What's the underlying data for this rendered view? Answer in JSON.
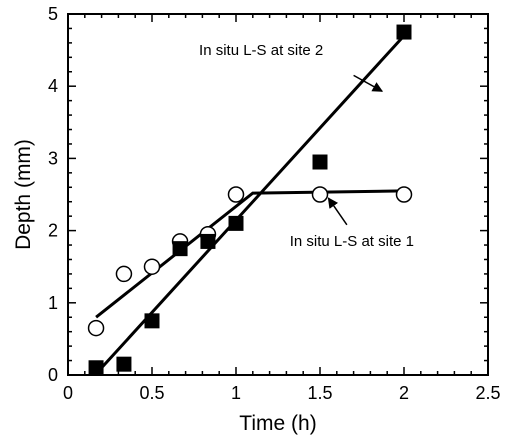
{
  "chart_data": {
    "type": "scatter",
    "xlabel": "Time (h)",
    "ylabel": "Depth (mm)",
    "xlim": [
      0,
      2.5
    ],
    "ylim": [
      0,
      5
    ],
    "xticks": [
      0,
      0.5,
      1,
      1.5,
      2,
      2.5
    ],
    "yticks": [
      0,
      1,
      2,
      3,
      4,
      5
    ],
    "xtick_labels": [
      "0",
      "0.5",
      "1",
      "1.5",
      "2",
      "2.5"
    ],
    "ytick_labels": [
      "0",
      "1",
      "2",
      "3",
      "4",
      "5"
    ],
    "grid": false,
    "series": [
      {
        "marker": "open-circle",
        "x": [
          0.167,
          0.333,
          0.5,
          0.667,
          0.833,
          1.0,
          1.5,
          2.0
        ],
        "y": [
          0.65,
          1.4,
          1.5,
          1.85,
          1.95,
          2.5,
          2.5,
          2.5
        ],
        "fit": [
          [
            0.167,
            0.8
          ],
          [
            1.1,
            2.52
          ],
          [
            2.0,
            2.55
          ]
        ]
      },
      {
        "marker": "filled-square",
        "x": [
          0.167,
          0.333,
          0.5,
          0.667,
          0.833,
          1.0,
          1.5,
          2.0
        ],
        "y": [
          0.1,
          0.15,
          0.75,
          1.75,
          1.85,
          2.1,
          2.95,
          4.75
        ],
        "fit": [
          [
            0.2,
            0.1
          ],
          [
            2.0,
            4.7
          ]
        ]
      }
    ],
    "annotations": [
      {
        "text": "In situ L-S at site 2",
        "text_at": [
          0.78,
          4.43
        ],
        "arrow_from": [
          1.7,
          4.15
        ],
        "arrow_to": [
          1.87,
          3.93
        ]
      },
      {
        "text": "In situ L-S at site 1",
        "text_at": [
          1.32,
          1.79
        ],
        "arrow_from": [
          1.66,
          2.08
        ],
        "arrow_to": [
          1.55,
          2.45
        ]
      }
    ],
    "colors": {
      "axis": "#000000",
      "series": "#000000",
      "background": "#ffffff"
    }
  }
}
